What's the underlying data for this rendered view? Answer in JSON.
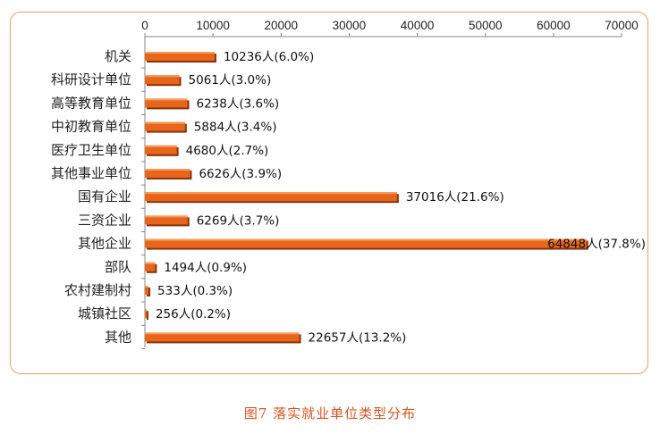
{
  "chart_data": {
    "type": "bar",
    "orientation": "horizontal",
    "categories": [
      "机关",
      "科研设计单位",
      "高等教育单位",
      "中初教育单位",
      "医疗卫生单位",
      "其他事业单位",
      "国有企业",
      "三资企业",
      "其他企业",
      "部队",
      "农村建制村",
      "城镇社区",
      "其他"
    ],
    "values": [
      10236,
      5061,
      6238,
      5884,
      4680,
      6626,
      37016,
      6269,
      64848,
      1494,
      533,
      256,
      22657
    ],
    "data_labels": [
      "10236人(6.0%)",
      "5061人(3.0%)",
      "6238人(3.6%)",
      "5884人(3.4%)",
      "4680人(2.7%)",
      "6626人(3.9%)",
      "37016人(21.6%)",
      "6269人(3.7%)",
      "64848人(37.8%)",
      "1494人(0.9%)",
      "533人(0.3%)",
      "256人(0.2%)",
      "22657人(13.2%)"
    ],
    "xlim": [
      0,
      70000
    ],
    "x_ticks": [
      "0",
      "10000",
      "20000",
      "30000",
      "40000",
      "50000",
      "60000",
      "70000"
    ],
    "x_axis_position": "top",
    "grid": false,
    "bar_color": "#e8661b",
    "bar_shadow_color": "#8a3208"
  },
  "caption": "图7  落实就业单位类型分布",
  "frame_border_color": "#f0a060",
  "caption_color": "#d9531e"
}
